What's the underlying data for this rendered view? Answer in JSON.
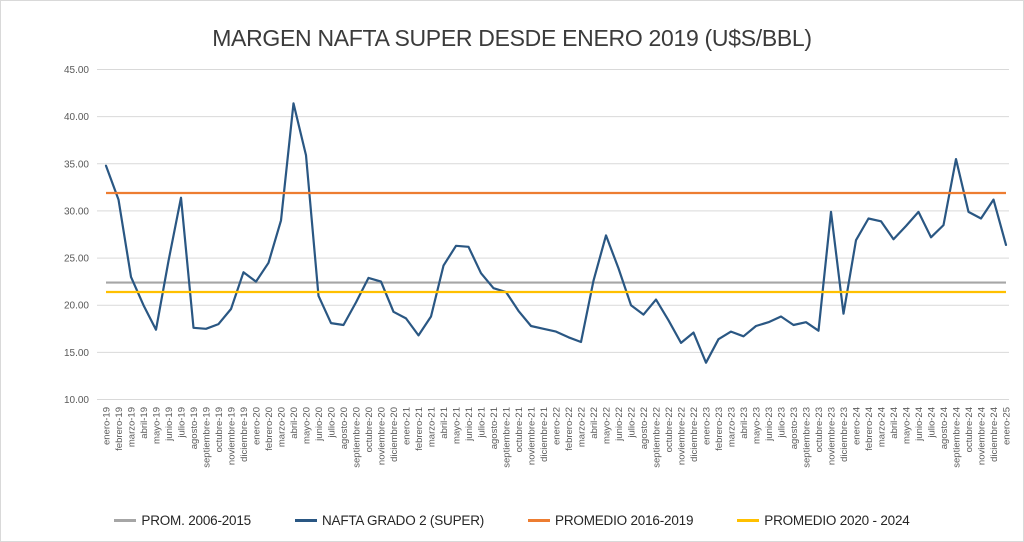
{
  "title": "MARGEN NAFTA SUPER DESDE ENERO 2019 (U$S/BBL)",
  "y_axis": {
    "min": 10,
    "max": 45,
    "step": 5,
    "tick_labels": [
      "10.00",
      "15.00",
      "20.00",
      "25.00",
      "30.00",
      "35.00",
      "40.00",
      "45.00"
    ]
  },
  "chart_data": {
    "type": "line",
    "title": "MARGEN NAFTA SUPER DESDE ENERO 2019 (U$S/BBL)",
    "xlabel": "",
    "ylabel": "",
    "ylim": [
      10,
      45
    ],
    "grid": true,
    "legend_position": "bottom",
    "categories": [
      "enero-19",
      "febrero-19",
      "marzo-19",
      "abril-19",
      "mayo-19",
      "junio-19",
      "julio-19",
      "agosto-19",
      "septiembre-19",
      "octubre-19",
      "noviembre-19",
      "diciembre-19",
      "enero-20",
      "febrero-20",
      "marzo-20",
      "abril-20",
      "mayo-20",
      "junio-20",
      "julio-20",
      "agosto-20",
      "septiembre-20",
      "octubre-20",
      "noviembre-20",
      "diciembre-20",
      "enero-21",
      "febrero-21",
      "marzo-21",
      "abril-21",
      "mayo-21",
      "junio-21",
      "julio-21",
      "agosto-21",
      "septiembre-21",
      "octubre-21",
      "noviembre-21",
      "diciembre-21",
      "enero-22",
      "febrero-22",
      "marzo-22",
      "abril-22",
      "mayo-22",
      "junio-22",
      "julio-22",
      "agosto-22",
      "septiembre-22",
      "octubre-22",
      "noviembre-22",
      "diciembre-22",
      "enero-23",
      "febrero-23",
      "marzo-23",
      "abril-23",
      "mayo-23",
      "junio-23",
      "julio-23",
      "agosto-23",
      "septiembre-23",
      "octubre-23",
      "noviembre-23",
      "diciembre-23",
      "enero-24",
      "febrero-24",
      "marzo-24",
      "abril-24",
      "mayo-24",
      "junio-24",
      "julio-24",
      "agosto-24",
      "septiembre-24",
      "octubre-24",
      "noviembre-24",
      "diciembre-24",
      "enero-25"
    ],
    "series": [
      {
        "name": "PROM. 2006-2015",
        "type": "reference",
        "value": 22.4,
        "color": "#A6A6A6"
      },
      {
        "name": "NAFTA GRADO 2 (SUPER)",
        "type": "line",
        "color": "#2A5783",
        "values": [
          34.8,
          31.2,
          23.0,
          20.0,
          17.4,
          24.7,
          31.4,
          17.6,
          17.5,
          18.0,
          19.6,
          23.5,
          22.5,
          24.5,
          29.0,
          41.4,
          35.9,
          21.0,
          18.1,
          17.9,
          20.3,
          22.9,
          22.5,
          19.3,
          18.6,
          16.8,
          18.8,
          24.2,
          26.3,
          26.2,
          23.4,
          21.8,
          21.4,
          19.4,
          17.8,
          17.5,
          17.2,
          16.6,
          16.1,
          22.6,
          27.4,
          23.9,
          20.0,
          19.0,
          20.6,
          18.4,
          16.0,
          17.1,
          13.9,
          16.4,
          17.2,
          16.7,
          17.8,
          18.2,
          18.8,
          17.9,
          18.2,
          17.3,
          29.9,
          19.1,
          26.9,
          29.2,
          28.9,
          27.0,
          28.4,
          29.9,
          27.2,
          28.5,
          35.5,
          29.9,
          29.2,
          31.2,
          26.4
        ]
      },
      {
        "name": "PROMEDIO 2016-2019",
        "type": "reference",
        "value": 31.9,
        "color": "#ED7D31"
      },
      {
        "name": "PROMEDIO 2020 - 2024",
        "type": "reference",
        "value": 21.4,
        "color": "#FFC000"
      }
    ]
  },
  "colors": {
    "grid": "#D9D9D9",
    "axis_text": "#595959",
    "title_text": "#3B3B3B",
    "background": "#FFFFFF",
    "border": "#D9D9D9"
  }
}
